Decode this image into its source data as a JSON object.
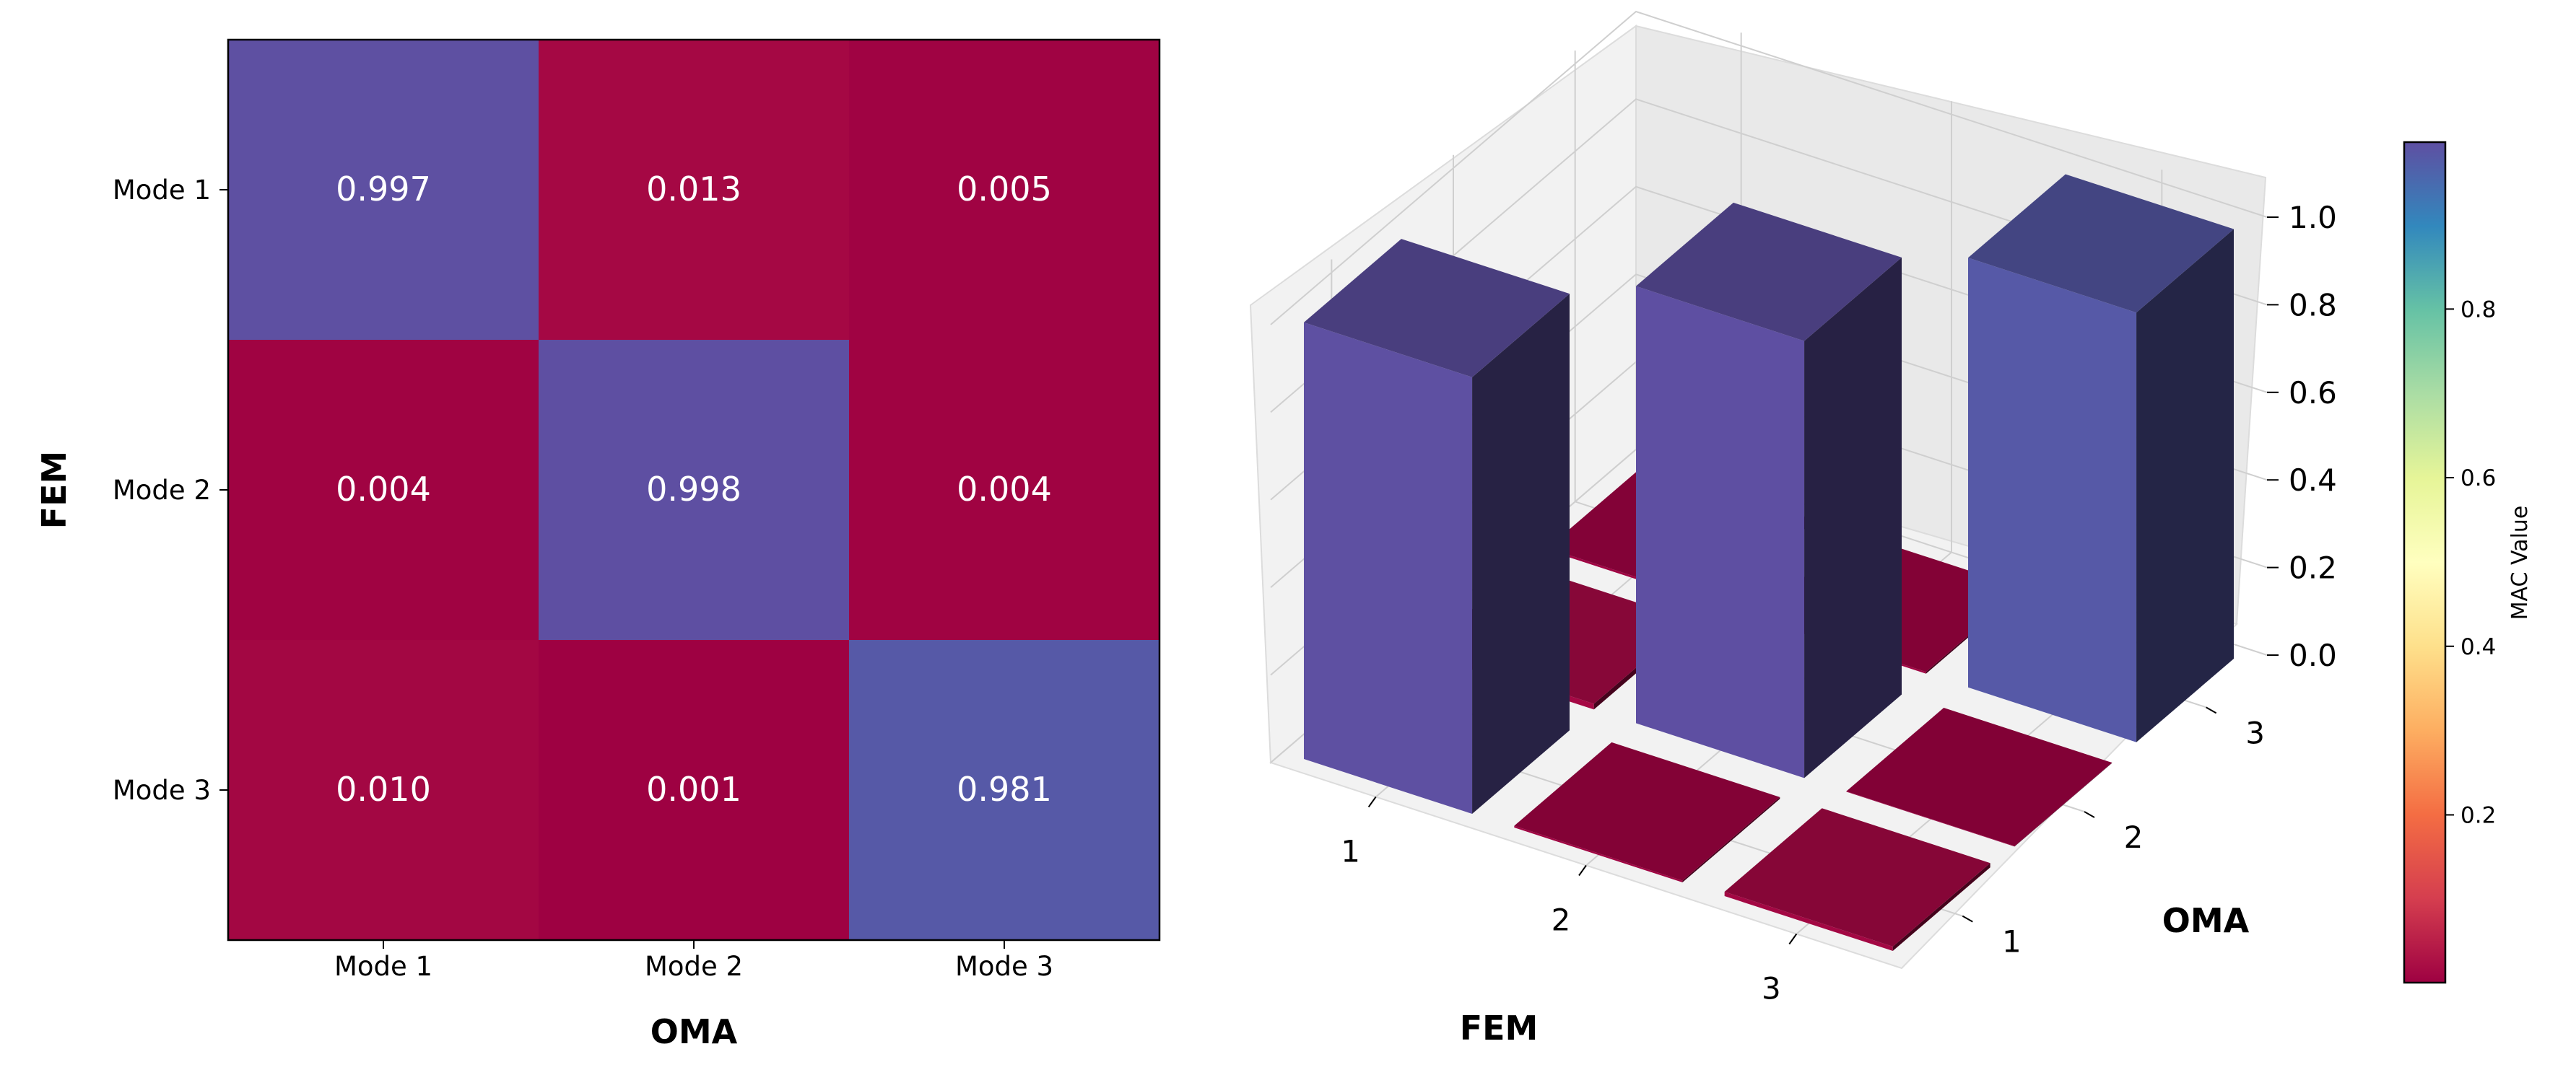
{
  "chart_data": [
    {
      "type": "heatmap",
      "xlabel": "OMA",
      "ylabel": "FEM",
      "x_categories": [
        "Mode 1",
        "Mode 2",
        "Mode 3"
      ],
      "y_categories": [
        "Mode 1",
        "Mode 2",
        "Mode 3"
      ],
      "values": [
        [
          0.997,
          0.013,
          0.005
        ],
        [
          0.004,
          0.998,
          0.004
        ],
        [
          0.01,
          0.001,
          0.981
        ]
      ],
      "cell_labels": [
        [
          "0.997",
          "0.013",
          "0.005"
        ],
        [
          "0.004",
          "0.998",
          "0.004"
        ],
        [
          "0.010",
          "0.001",
          "0.981"
        ]
      ],
      "colormap": "Spectral"
    },
    {
      "type": "bar3d",
      "xlabel": "FEM",
      "ylabel": "OMA",
      "x_ticks": [
        "1",
        "2",
        "3"
      ],
      "y_ticks": [
        "1",
        "2",
        "3"
      ],
      "z_ticks": [
        "0.0",
        "0.2",
        "0.4",
        "0.6",
        "0.8",
        "1.0"
      ],
      "zlim": [
        0,
        1
      ],
      "values": [
        [
          0.997,
          0.013,
          0.005
        ],
        [
          0.004,
          0.998,
          0.004
        ],
        [
          0.01,
          0.001,
          0.981
        ]
      ],
      "colormap": "Spectral"
    }
  ],
  "colorbar": {
    "label": "MAC Value",
    "ticks": [
      "0.2",
      "0.4",
      "0.6",
      "0.8"
    ],
    "tick_values": [
      0.2,
      0.4,
      0.6,
      0.8
    ],
    "range": [
      0.001,
      0.998
    ],
    "colormap": "Spectral"
  },
  "colors": {
    "low": "#bb003c",
    "high": "#5e4fa2",
    "background": "#ffffff",
    "pane": "#f2f2f2",
    "grid": "#cccccc"
  }
}
